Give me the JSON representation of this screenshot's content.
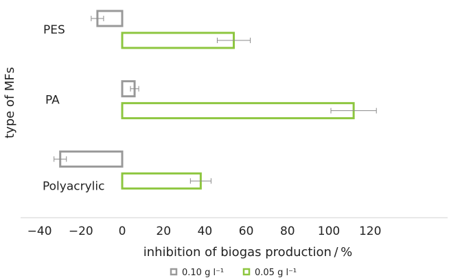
{
  "chart_data": {
    "type": "bar",
    "orientation": "horizontal",
    "categories": [
      "PES",
      "PA",
      "Polyacrylic"
    ],
    "series": [
      {
        "name": "0.10 g l⁻¹",
        "color": "#999999",
        "values": [
          -12,
          6,
          -30
        ],
        "error_low": [
          -15,
          4,
          -33
        ],
        "error_high": [
          -9,
          8,
          -27
        ]
      },
      {
        "name": "0.05 g l⁻¹",
        "color": "#8dc63f",
        "values": [
          54,
          112,
          38
        ],
        "error_low": [
          46,
          101,
          33
        ],
        "error_high": [
          62,
          123,
          43
        ]
      }
    ],
    "xlabel": "inhibition of biogas production / %",
    "ylabel": "type of MFs",
    "xlim": [
      -40,
      125
    ],
    "xticks": [
      "−40",
      "−20",
      "0",
      "20",
      "40",
      "60",
      "80",
      "100",
      "120"
    ],
    "xtick_values": [
      -40,
      -20,
      0,
      20,
      40,
      60,
      80,
      100,
      120
    ],
    "legend_position": "bottom",
    "grid": false
  }
}
